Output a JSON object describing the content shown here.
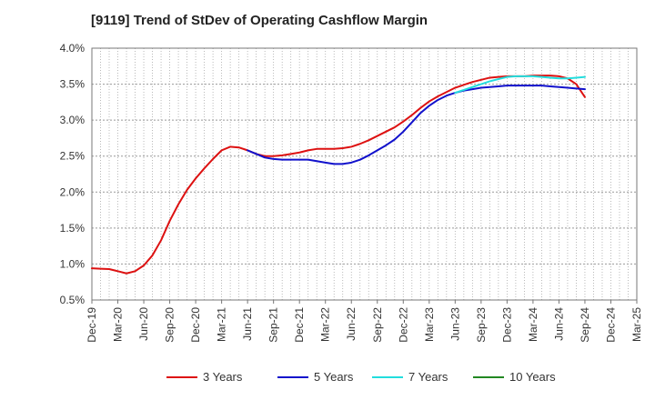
{
  "chart_data": {
    "type": "line",
    "title": "[9119]  Trend of StDev of Operating Cashflow Margin",
    "xlabel": "",
    "ylabel": "",
    "ylim": [
      0.5,
      4.0
    ],
    "grid": true,
    "legend_position": "bottom",
    "y_ticks": [
      "4.0%",
      "3.5%",
      "3.0%",
      "2.5%",
      "2.0%",
      "1.5%",
      "1.0%",
      "0.5%"
    ],
    "y_tick_values": [
      4.0,
      3.5,
      3.0,
      2.5,
      2.0,
      1.5,
      1.0,
      0.5
    ],
    "x_ticks": [
      "Dec-19",
      "Mar-20",
      "Jun-20",
      "Sep-20",
      "Dec-20",
      "Mar-21",
      "Jun-21",
      "Sep-21",
      "Dec-21",
      "Mar-22",
      "Jun-22",
      "Sep-22",
      "Dec-22",
      "Mar-23",
      "Jun-23",
      "Sep-23",
      "Dec-23",
      "Mar-24",
      "Jun-24",
      "Sep-24",
      "Dec-24",
      "Mar-25"
    ],
    "x_range_months": [
      0,
      63
    ],
    "series": [
      {
        "name": "3 Years",
        "color": "#dd1111",
        "x_months": [
          0,
          1,
          2,
          3,
          4,
          5,
          6,
          7,
          8,
          9,
          10,
          11,
          12,
          13,
          14,
          15,
          16,
          17,
          18,
          19,
          20,
          21,
          22,
          23,
          24,
          25,
          26,
          27,
          28,
          29,
          30,
          31,
          32,
          33,
          34,
          35,
          36,
          37,
          38,
          39,
          40,
          41,
          42,
          43,
          44,
          45,
          46,
          47,
          48,
          49,
          50,
          51,
          52,
          53,
          54,
          55,
          56,
          57
        ],
        "values": [
          0.94,
          0.935,
          0.93,
          0.9,
          0.87,
          0.9,
          0.98,
          1.12,
          1.33,
          1.6,
          1.83,
          2.03,
          2.19,
          2.33,
          2.46,
          2.58,
          2.63,
          2.62,
          2.58,
          2.53,
          2.5,
          2.5,
          2.51,
          2.53,
          2.55,
          2.58,
          2.6,
          2.6,
          2.6,
          2.61,
          2.63,
          2.67,
          2.72,
          2.78,
          2.84,
          2.9,
          2.98,
          3.07,
          3.17,
          3.26,
          3.33,
          3.39,
          3.45,
          3.49,
          3.53,
          3.56,
          3.59,
          3.6,
          3.61,
          3.61,
          3.61,
          3.62,
          3.62,
          3.62,
          3.61,
          3.58,
          3.5,
          3.32
        ]
      },
      {
        "name": "5 Years",
        "color": "#1111cc",
        "x_months": [
          18,
          19,
          20,
          21,
          22,
          23,
          24,
          25,
          26,
          27,
          28,
          29,
          30,
          31,
          32,
          33,
          34,
          35,
          36,
          37,
          38,
          39,
          40,
          41,
          42,
          43,
          44,
          45,
          46,
          47,
          48,
          49,
          50,
          51,
          52,
          53,
          54,
          55,
          56,
          57
        ],
        "values": [
          2.58,
          2.53,
          2.48,
          2.46,
          2.45,
          2.45,
          2.45,
          2.45,
          2.43,
          2.41,
          2.39,
          2.39,
          2.41,
          2.45,
          2.51,
          2.58,
          2.65,
          2.73,
          2.84,
          2.97,
          3.1,
          3.2,
          3.28,
          3.34,
          3.38,
          3.41,
          3.43,
          3.45,
          3.46,
          3.47,
          3.48,
          3.48,
          3.48,
          3.48,
          3.48,
          3.47,
          3.46,
          3.45,
          3.44,
          3.43
        ]
      },
      {
        "name": "7 Years",
        "color": "#22dddd",
        "x_months": [
          42,
          43,
          44,
          45,
          46,
          47,
          48,
          49,
          50,
          51,
          52,
          53,
          54,
          55,
          56,
          57
        ],
        "values": [
          3.38,
          3.42,
          3.46,
          3.5,
          3.54,
          3.57,
          3.6,
          3.61,
          3.61,
          3.61,
          3.6,
          3.59,
          3.58,
          3.58,
          3.59,
          3.6
        ]
      },
      {
        "name": "10 Years",
        "color": "#228822",
        "x_months": [],
        "values": []
      }
    ]
  }
}
